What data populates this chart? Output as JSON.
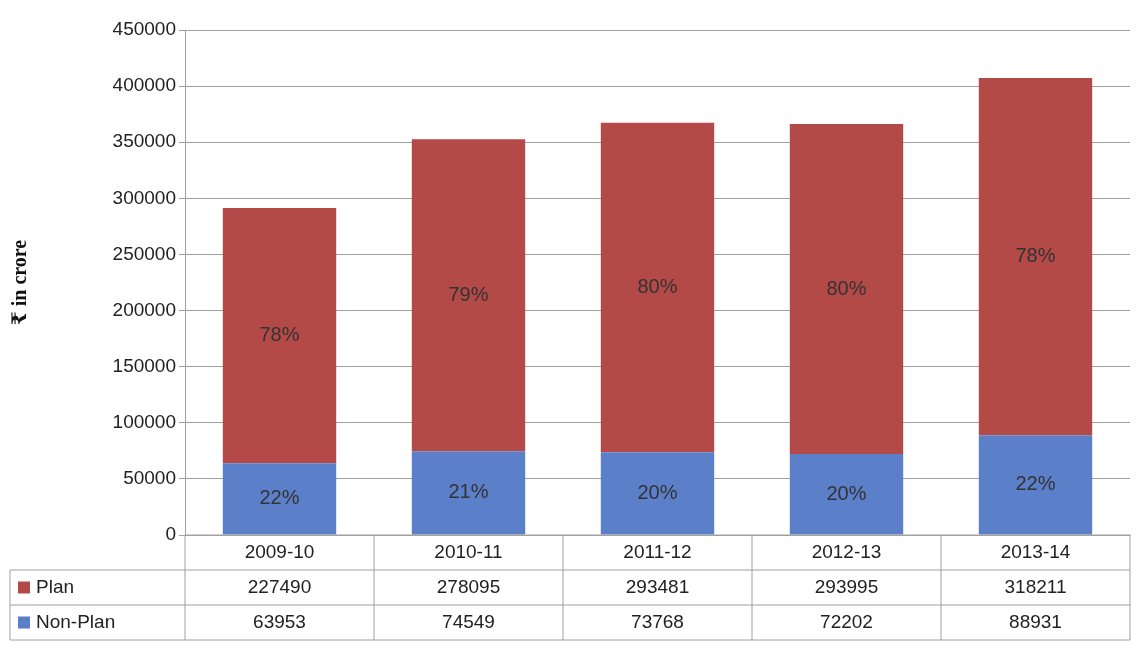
{
  "chart_data": {
    "type": "bar",
    "stacked": true,
    "ylabel": "₹ in crore",
    "categories": [
      "2009-10",
      "2010-11",
      "2011-12",
      "2012-13",
      "2013-14"
    ],
    "series": [
      {
        "name": "Non-Plan",
        "color": "#5b7fc9",
        "values": [
          63953,
          74549,
          73768,
          72202,
          88931
        ],
        "value_labels": [
          "63953",
          "74549",
          "73768",
          "72202",
          "88931"
        ]
      },
      {
        "name": "Plan",
        "color": "#b44a48",
        "values": [
          227490,
          278095,
          293481,
          293995,
          318211
        ],
        "value_labels": [
          "227490",
          "278095",
          "293481",
          "293995",
          "318211"
        ]
      }
    ],
    "annotations": [
      "22%",
      "21%",
      "20%",
      "20%",
      "22%",
      "78%",
      "79%",
      "80%",
      "80%",
      "78%"
    ],
    "ylim": [
      0,
      450000
    ],
    "yticks": [
      0,
      50000,
      100000,
      150000,
      200000,
      250000,
      300000,
      350000,
      400000,
      450000
    ],
    "grid": "y",
    "legend": "bottom",
    "data_labels": true
  }
}
